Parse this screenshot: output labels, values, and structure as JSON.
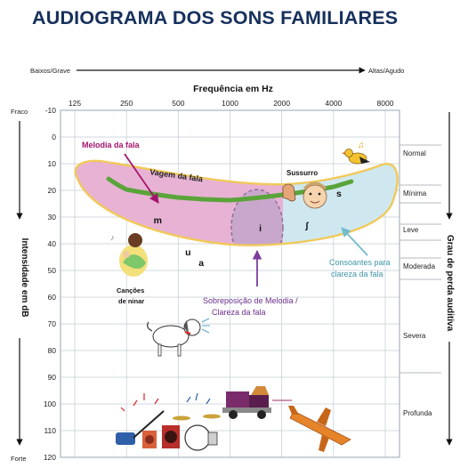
{
  "title": "AUDIOGRAMA DOS SONS FAMILIARES",
  "top_axis": {
    "left": "Baixos/Grave",
    "right": "Altas/Agudo"
  },
  "left_axis": {
    "top": "Fraco",
    "bottom": "Forte",
    "label": "Intensidade em dB"
  },
  "right_axis": {
    "label": "Grau de perda auditiva"
  },
  "colors": {
    "speech_banana": "#e7b2d3",
    "consonants": "#cfe8f0",
    "overlap": "#c9a7cc",
    "banana_border": "#f1c95a",
    "speech_edge": "#5aa43a",
    "melody_arrow": "#a4156e",
    "overlap_arrow": "#7b3e9c",
    "consonant_arrow": "#74bccb"
  },
  "chart_data": {
    "type": "audiogram",
    "title": "AUDIOGRAMA DOS SONS FAMILIARES",
    "xlabel": "Frequência em Hz",
    "ylabel": "Intensidade em dB",
    "x_ticks": [
      "125",
      "250",
      "500",
      "1000",
      "2000",
      "4000",
      "8000"
    ],
    "x_scale": "log",
    "y_ticks": [
      "-10",
      "0",
      "10",
      "20",
      "30",
      "40",
      "50",
      "60",
      "70",
      "80",
      "90",
      "100",
      "110",
      "120"
    ],
    "ylim": [
      -10,
      120
    ],
    "y_inverted": true,
    "hearing_loss_degrees": [
      {
        "label": "Normal",
        "from_db": -10,
        "to_db": 25
      },
      {
        "label": "Mínima",
        "from_db": 15,
        "to_db": 25
      },
      {
        "label": "Leve",
        "from_db": 25,
        "to_db": 40
      },
      {
        "label": "Moderada",
        "from_db": 40,
        "to_db": 55
      },
      {
        "label": "Severa",
        "from_db": 55,
        "to_db": 90
      },
      {
        "label": "Profunda",
        "from_db": 90,
        "to_db": 120
      }
    ],
    "speech_edge": {
      "label": "Vagem da fala",
      "x": [
        125,
        250,
        500,
        1000,
        2000,
        4000
      ],
      "y": [
        13,
        17,
        20,
        21,
        19,
        16
      ]
    },
    "speech_sounds": [
      {
        "text": "m",
        "x": 380,
        "y": 31
      },
      {
        "text": "u",
        "x": 570,
        "y": 43
      },
      {
        "text": "a",
        "x": 680,
        "y": 47
      },
      {
        "text": "i",
        "x": 1500,
        "y": 34
      },
      {
        "text": "ʃ",
        "x": 2800,
        "y": 33
      },
      {
        "text": "s",
        "x": 4300,
        "y": 21
      }
    ],
    "sound_sources": [
      {
        "label": "Sussurro",
        "x": 2000,
        "y": 14
      },
      {
        "label": "Canções de ninar",
        "x": 260,
        "y": 52
      }
    ],
    "annotations": [
      {
        "text": "Melodia da fala"
      },
      {
        "text": "Sobreposição de Melodia / Clareza da fala"
      },
      {
        "text": "Consoantes para clareza da fala"
      }
    ]
  }
}
